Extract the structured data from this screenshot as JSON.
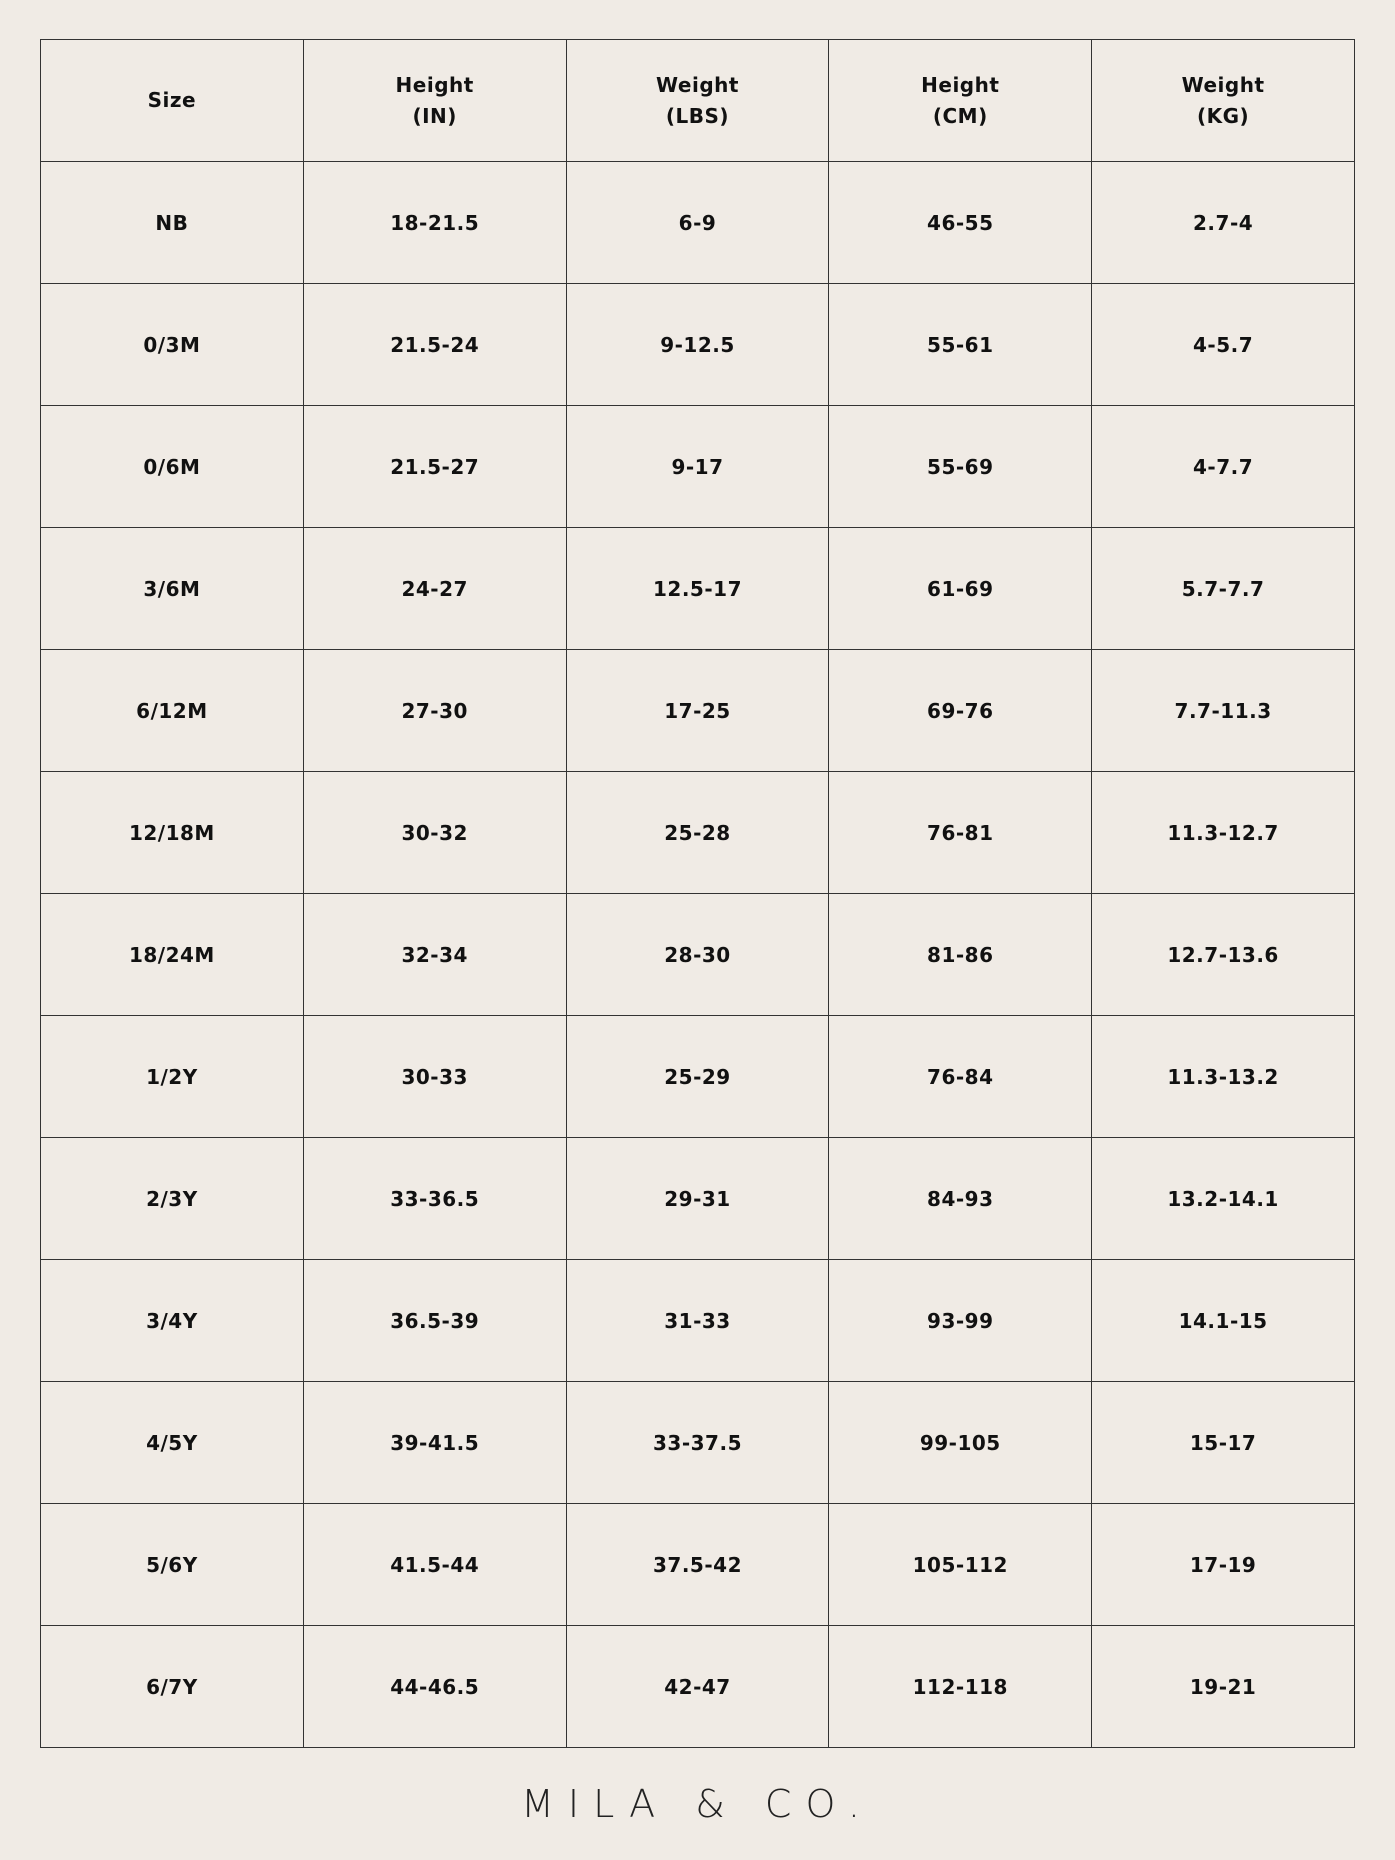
{
  "header": [
    {
      "line1": "Size",
      "line2": ""
    },
    {
      "line1": "Height",
      "line2": "(IN)"
    },
    {
      "line1": "Weight",
      "line2": "(LBS)"
    },
    {
      "line1": "Height",
      "line2": "(CM)"
    },
    {
      "line1": "Weight",
      "line2": "(KG)"
    }
  ],
  "rows": [
    [
      "NB",
      "18-21.5",
      "6-9",
      "46-55",
      "2.7-4"
    ],
    [
      "0/3M",
      "21.5-24",
      "9-12.5",
      "55-61",
      "4-5.7"
    ],
    [
      "0/6M",
      "21.5-27",
      "9-17",
      "55-69",
      "4-7.7"
    ],
    [
      "3/6M",
      "24-27",
      "12.5-17",
      "61-69",
      "5.7-7.7"
    ],
    [
      "6/12M",
      "27-30",
      "17-25",
      "69-76",
      "7.7-11.3"
    ],
    [
      "12/18M",
      "30-32",
      "25-28",
      "76-81",
      "11.3-12.7"
    ],
    [
      "18/24M",
      "32-34",
      "28-30",
      "81-86",
      "12.7-13.6"
    ],
    [
      "1/2Y",
      "30-33",
      "25-29",
      "76-84",
      "11.3-13.2"
    ],
    [
      "2/3Y",
      "33-36.5",
      "29-31",
      "84-93",
      "13.2-14.1"
    ],
    [
      "3/4Y",
      "36.5-39",
      "31-33",
      "93-99",
      "14.1-15"
    ],
    [
      "4/5Y",
      "39-41.5",
      "33-37.5",
      "99-105",
      "15-17"
    ],
    [
      "5/6Y",
      "41.5-44",
      "37.5-42",
      "105-112",
      "17-19"
    ],
    [
      "6/7Y",
      "44-46.5",
      "42-47",
      "112-118",
      "19-21"
    ]
  ],
  "logo": "MILA & CO.",
  "colors": {
    "background": "#f0ebe5",
    "text": "#111111",
    "grid": "#333333"
  }
}
